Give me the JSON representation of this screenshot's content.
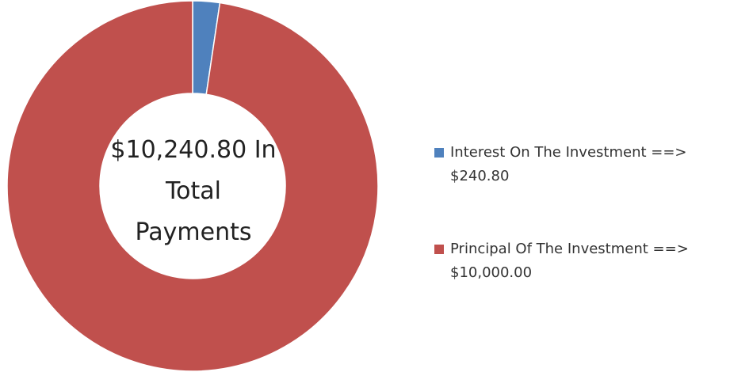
{
  "chart_data": {
    "type": "pie",
    "donut": true,
    "center_label": [
      "$10,240.80 In",
      "Total",
      "Payments"
    ],
    "series": [
      {
        "label": "Interest On The Investment ==>",
        "value_text": "$240.80",
        "value": 240.8,
        "color": "#4f81bd"
      },
      {
        "label": "Principal Of The Investment ==>",
        "value_text": "$10,000.00",
        "value": 10000.0,
        "color": "#c0504d"
      }
    ],
    "legend_position": "right"
  }
}
